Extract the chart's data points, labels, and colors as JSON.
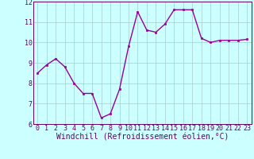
{
  "x": [
    0,
    1,
    2,
    3,
    4,
    5,
    6,
    7,
    8,
    9,
    10,
    11,
    12,
    13,
    14,
    15,
    16,
    17,
    18,
    19,
    20,
    21,
    22,
    23
  ],
  "y": [
    8.5,
    8.9,
    9.2,
    8.8,
    8.0,
    7.5,
    7.5,
    6.3,
    6.5,
    7.7,
    9.8,
    11.5,
    10.6,
    10.5,
    10.9,
    11.6,
    11.6,
    11.6,
    10.2,
    10.0,
    10.1,
    10.1,
    10.1,
    10.15
  ],
  "line_color": "#990099",
  "marker": "s",
  "marker_size": 2,
  "bg_color": "#ccffff",
  "grid_color": "#aacccc",
  "xlabel": "Windchill (Refroidissement éolien,°C)",
  "ylim": [
    6,
    12
  ],
  "xlim_min": -0.5,
  "xlim_max": 23.5,
  "yticks": [
    6,
    7,
    8,
    9,
    10,
    11,
    12
  ],
  "xticks": [
    0,
    1,
    2,
    3,
    4,
    5,
    6,
    7,
    8,
    9,
    10,
    11,
    12,
    13,
    14,
    15,
    16,
    17,
    18,
    19,
    20,
    21,
    22,
    23
  ],
  "xlabel_fontsize": 7,
  "tick_fontsize": 6,
  "line_width": 1.0,
  "spine_color": "#660066",
  "label_color": "#660066"
}
